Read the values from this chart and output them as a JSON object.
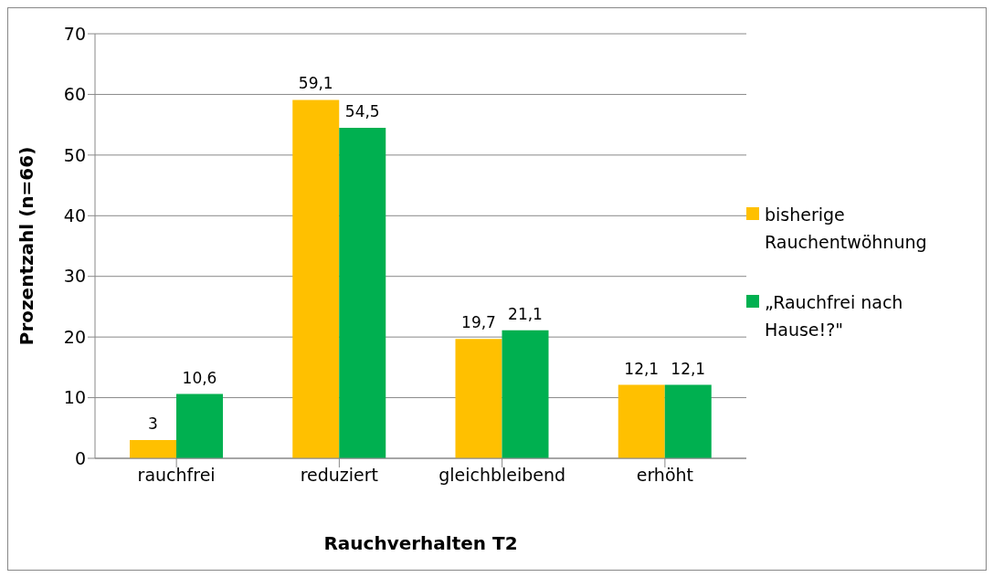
{
  "chart_data": {
    "type": "bar",
    "xlabel": "Rauchverhalten T2",
    "ylabel": "Prozentzahl (n=66)",
    "categories": [
      "rauchfrei",
      "reduziert",
      "gleichbleibend",
      "erhöht"
    ],
    "series": [
      {
        "name": "bisherige Rauchentwöhnung",
        "color": "#ffc000",
        "values": [
          3,
          59.1,
          19.7,
          12.1
        ],
        "value_labels": [
          "3",
          "59,1",
          "19,7",
          "12,1"
        ]
      },
      {
        "name": "„Rauchfrei nach Hause!?\"",
        "color": "#00b050",
        "values": [
          10.6,
          54.5,
          21.1,
          12.1
        ],
        "value_labels": [
          "10,6",
          "54,5",
          "21,1",
          "12,1"
        ]
      }
    ],
    "ylim": [
      0,
      70
    ],
    "yticks": [
      0,
      10,
      20,
      30,
      40,
      50,
      60,
      70
    ],
    "grid": "y",
    "legend": "right"
  }
}
